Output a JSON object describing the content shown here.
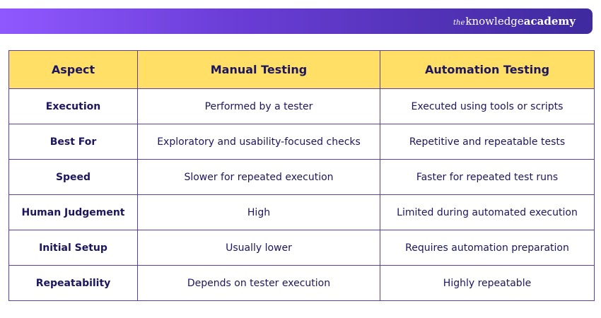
{
  "brand": {
    "the": "the",
    "knowledge": "knowledge",
    "academy": "academy"
  },
  "table": {
    "headers": [
      "Aspect",
      "Manual Testing",
      "Automation Testing"
    ],
    "rows": [
      [
        "Execution",
        "Performed by a tester",
        "Executed using tools or scripts"
      ],
      [
        "Best For",
        "Exploratory and usability-focused checks",
        "Repetitive and repeatable tests"
      ],
      [
        "Speed",
        "Slower for repeated execution",
        "Faster for repeated test runs"
      ],
      [
        "Human Judgement",
        "High",
        "Limited during automated execution"
      ],
      [
        "Initial Setup",
        "Usually lower",
        "Requires automation preparation"
      ],
      [
        "Repeatability",
        "Depends on tester execution",
        "Highly repeatable"
      ]
    ]
  },
  "colors": {
    "header_bg": "#ffdf66",
    "border": "#5b3fa0",
    "text": "#1c1660",
    "banner_start": "#8f58ff",
    "banner_end": "#3f2a9e"
  }
}
